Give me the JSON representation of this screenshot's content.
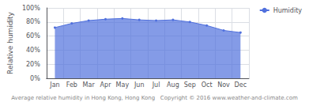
{
  "chart_data": {
    "type": "area",
    "ylabel": "Relative humidity",
    "annotations": [
      "Average relative humidity in Hong Kong, Hong Kong   Copyright © 2016 www.weather-and-climate.com"
    ],
    "categories": [
      "Jan",
      "Feb",
      "Mar",
      "Apr",
      "May",
      "Jun",
      "Jul",
      "Aug",
      "Sep",
      "Oct",
      "Nov",
      "Dec"
    ],
    "series": [
      {
        "name": "Humidity",
        "values": [
          72,
          78,
          82,
          84,
          85,
          83,
          82,
          83,
          80,
          75,
          68,
          65
        ],
        "marker": "circle"
      }
    ],
    "ylim": [
      0,
      100
    ],
    "yticks": [
      {
        "value": 0,
        "label": "0%"
      },
      {
        "value": 20,
        "label": "20%"
      },
      {
        "value": 40,
        "label": "40%"
      },
      {
        "value": 60,
        "label": "60%"
      },
      {
        "value": 80,
        "label": "80%"
      },
      {
        "value": 100,
        "label": "100%"
      }
    ],
    "grid": true,
    "legend": "upper right"
  }
}
